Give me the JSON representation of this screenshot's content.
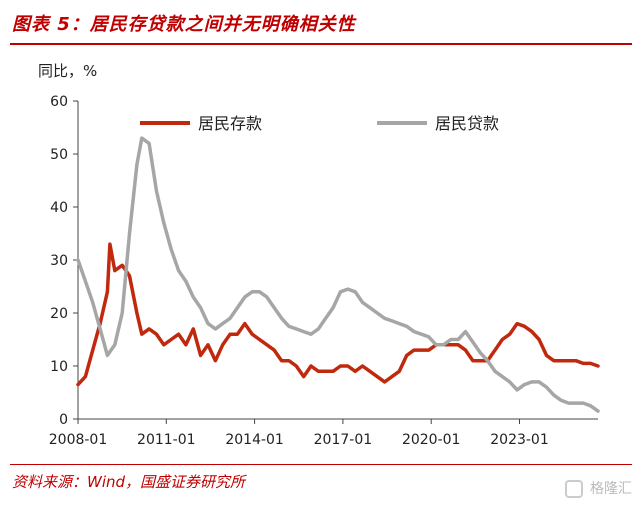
{
  "header": {
    "title": "图表 5：居民存贷款之间并无明确相关性"
  },
  "footer": {
    "source": "资料来源：Wind，国盛证券研究所"
  },
  "watermark": {
    "text": "格隆汇"
  },
  "chart_data": {
    "type": "line",
    "unit_label": "同比，%",
    "ylim": [
      0,
      60
    ],
    "yticks": [
      0,
      10,
      20,
      30,
      40,
      50,
      60
    ],
    "xticks": [
      "2008-01",
      "2011-01",
      "2014-01",
      "2017-01",
      "2020-01",
      "2023-01"
    ],
    "xrange": [
      "2008-01",
      "2025-09"
    ],
    "grid": false,
    "legend_position": "top",
    "series": [
      {
        "name": "居民存款",
        "color": "#c0290e",
        "points": [
          [
            "2008-01",
            6.5
          ],
          [
            "2008-04",
            8
          ],
          [
            "2008-07",
            13
          ],
          [
            "2008-10",
            18
          ],
          [
            "2009-01",
            24
          ],
          [
            "2009-02",
            33
          ],
          [
            "2009-04",
            28
          ],
          [
            "2009-07",
            29
          ],
          [
            "2009-10",
            27
          ],
          [
            "2010-01",
            20
          ],
          [
            "2010-03",
            16
          ],
          [
            "2010-06",
            17
          ],
          [
            "2010-09",
            16
          ],
          [
            "2010-12",
            14
          ],
          [
            "2011-03",
            15
          ],
          [
            "2011-06",
            16
          ],
          [
            "2011-09",
            14
          ],
          [
            "2011-12",
            17
          ],
          [
            "2012-03",
            12
          ],
          [
            "2012-06",
            14
          ],
          [
            "2012-09",
            11
          ],
          [
            "2012-12",
            14
          ],
          [
            "2013-03",
            16
          ],
          [
            "2013-06",
            16
          ],
          [
            "2013-09",
            18
          ],
          [
            "2013-12",
            16
          ],
          [
            "2014-03",
            15
          ],
          [
            "2014-06",
            14
          ],
          [
            "2014-09",
            13
          ],
          [
            "2014-12",
            11
          ],
          [
            "2015-03",
            11
          ],
          [
            "2015-06",
            10
          ],
          [
            "2015-09",
            8
          ],
          [
            "2015-12",
            10
          ],
          [
            "2016-03",
            9
          ],
          [
            "2016-06",
            9
          ],
          [
            "2016-09",
            9
          ],
          [
            "2016-12",
            10
          ],
          [
            "2017-03",
            10
          ],
          [
            "2017-06",
            9
          ],
          [
            "2017-09",
            10
          ],
          [
            "2017-12",
            9
          ],
          [
            "2018-03",
            8
          ],
          [
            "2018-06",
            7
          ],
          [
            "2018-09",
            8
          ],
          [
            "2018-12",
            9
          ],
          [
            "2019-03",
            12
          ],
          [
            "2019-06",
            13
          ],
          [
            "2019-09",
            13
          ],
          [
            "2019-12",
            13
          ],
          [
            "2020-03",
            14
          ],
          [
            "2020-06",
            14
          ],
          [
            "2020-09",
            14
          ],
          [
            "2020-12",
            14
          ],
          [
            "2021-03",
            13
          ],
          [
            "2021-06",
            11
          ],
          [
            "2021-09",
            11
          ],
          [
            "2021-12",
            11
          ],
          [
            "2022-03",
            13
          ],
          [
            "2022-06",
            15
          ],
          [
            "2022-09",
            16
          ],
          [
            "2022-12",
            18
          ],
          [
            "2023-03",
            17.5
          ],
          [
            "2023-06",
            16.5
          ],
          [
            "2023-09",
            15
          ],
          [
            "2023-12",
            12
          ],
          [
            "2024-03",
            11
          ],
          [
            "2024-06",
            11
          ],
          [
            "2024-09",
            11
          ],
          [
            "2024-12",
            11
          ],
          [
            "2025-03",
            10.5
          ],
          [
            "2025-06",
            10.5
          ],
          [
            "2025-09",
            10
          ]
        ]
      },
      {
        "name": "居民贷款",
        "color": "#a6a6a6",
        "points": [
          [
            "2008-01",
            30
          ],
          [
            "2008-04",
            26
          ],
          [
            "2008-07",
            22
          ],
          [
            "2008-10",
            17
          ],
          [
            "2009-01",
            12
          ],
          [
            "2009-04",
            14
          ],
          [
            "2009-07",
            20
          ],
          [
            "2009-10",
            35
          ],
          [
            "2010-01",
            48
          ],
          [
            "2010-03",
            53
          ],
          [
            "2010-06",
            52
          ],
          [
            "2010-09",
            43
          ],
          [
            "2010-12",
            37
          ],
          [
            "2011-03",
            32
          ],
          [
            "2011-06",
            28
          ],
          [
            "2011-09",
            26
          ],
          [
            "2011-12",
            23
          ],
          [
            "2012-03",
            21
          ],
          [
            "2012-06",
            18
          ],
          [
            "2012-09",
            17
          ],
          [
            "2012-12",
            18
          ],
          [
            "2013-03",
            19
          ],
          [
            "2013-06",
            21
          ],
          [
            "2013-09",
            23
          ],
          [
            "2013-12",
            24
          ],
          [
            "2014-03",
            24
          ],
          [
            "2014-06",
            23
          ],
          [
            "2014-09",
            21
          ],
          [
            "2014-12",
            19
          ],
          [
            "2015-03",
            17.5
          ],
          [
            "2015-06",
            17
          ],
          [
            "2015-09",
            16.5
          ],
          [
            "2015-12",
            16
          ],
          [
            "2016-03",
            17
          ],
          [
            "2016-06",
            19
          ],
          [
            "2016-09",
            21
          ],
          [
            "2016-12",
            24
          ],
          [
            "2017-03",
            24.5
          ],
          [
            "2017-06",
            24
          ],
          [
            "2017-09",
            22
          ],
          [
            "2017-12",
            21
          ],
          [
            "2018-03",
            20
          ],
          [
            "2018-06",
            19
          ],
          [
            "2018-09",
            18.5
          ],
          [
            "2018-12",
            18
          ],
          [
            "2019-03",
            17.5
          ],
          [
            "2019-06",
            16.5
          ],
          [
            "2019-09",
            16
          ],
          [
            "2019-12",
            15.5
          ],
          [
            "2020-03",
            14
          ],
          [
            "2020-06",
            14
          ],
          [
            "2020-09",
            15
          ],
          [
            "2020-12",
            15
          ],
          [
            "2021-03",
            16.5
          ],
          [
            "2021-06",
            14.5
          ],
          [
            "2021-09",
            12.5
          ],
          [
            "2021-12",
            11
          ],
          [
            "2022-03",
            9
          ],
          [
            "2022-06",
            8
          ],
          [
            "2022-09",
            7
          ],
          [
            "2022-12",
            5.5
          ],
          [
            "2023-03",
            6.5
          ],
          [
            "2023-06",
            7
          ],
          [
            "2023-09",
            7
          ],
          [
            "2023-12",
            6
          ],
          [
            "2024-03",
            4.5
          ],
          [
            "2024-06",
            3.5
          ],
          [
            "2024-09",
            3
          ],
          [
            "2024-12",
            3
          ],
          [
            "2025-03",
            3
          ],
          [
            "2025-06",
            2.5
          ],
          [
            "2025-09",
            1.5
          ]
        ]
      }
    ]
  }
}
